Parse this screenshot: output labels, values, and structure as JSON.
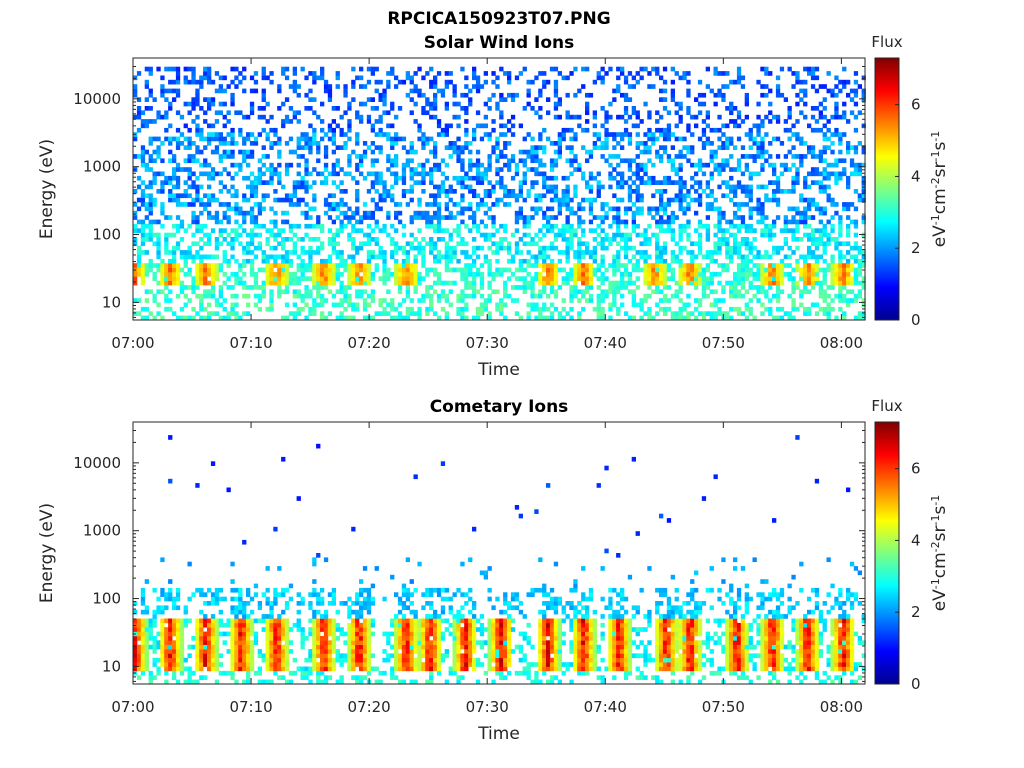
{
  "figure": {
    "title": "RPCICA150923T07.PNG"
  },
  "chart_data": [
    {
      "type": "heatmap",
      "title": "Solar Wind Ions",
      "xlabel": "Time",
      "ylabel": "Energy (eV)",
      "x_range": [
        "07:00",
        "08:02"
      ],
      "x_ticks": [
        "07:00",
        "07:10",
        "07:20",
        "07:30",
        "07:40",
        "07:50",
        "08:00"
      ],
      "y_scale": "log",
      "y_range": [
        5.5,
        40000
      ],
      "y_ticks": [
        10,
        100,
        1000,
        10000
      ],
      "colorbar": {
        "title": "Flux",
        "label": "eV^-1 cm^-2 sr^-1 s^-1",
        "range": [
          0,
          7.3
        ],
        "ticks": [
          0,
          2,
          4,
          6
        ],
        "colormap": "jet"
      },
      "description_values": {
        "scattered_high_energy_flux_range": [
          1,
          3
        ],
        "bright_band_energy_ev": [
          18,
          35
        ],
        "bright_band_peak_flux": 6,
        "bright_band_times": [
          "07:00",
          "07:03",
          "07:06",
          "07:12",
          "07:16",
          "07:19",
          "07:23",
          "07:35",
          "07:38",
          "07:44",
          "07:47",
          "07:54",
          "07:57",
          "08:00"
        ]
      }
    },
    {
      "type": "heatmap",
      "title": "Cometary Ions",
      "xlabel": "Time",
      "ylabel": "Energy (eV)",
      "x_range": [
        "07:00",
        "08:02"
      ],
      "x_ticks": [
        "07:00",
        "07:10",
        "07:20",
        "07:30",
        "07:40",
        "07:50",
        "08:00"
      ],
      "y_scale": "log",
      "y_range": [
        5.5,
        40000
      ],
      "y_ticks": [
        10,
        100,
        1000,
        10000
      ],
      "colorbar": {
        "title": "Flux",
        "label": "eV^-1 cm^-2 sr^-1 s^-1",
        "range": [
          0,
          7.3
        ],
        "ticks": [
          0,
          2,
          4,
          6
        ],
        "colormap": "jet"
      },
      "description_values": {
        "burst_energy_ev": [
          8,
          45
        ],
        "burst_peak_flux": 7,
        "burst_times": [
          "07:00",
          "07:03",
          "07:06",
          "07:09",
          "07:12",
          "07:16",
          "07:19",
          "07:23",
          "07:25",
          "07:28",
          "07:31",
          "07:35",
          "07:38",
          "07:41",
          "07:45",
          "07:47",
          "07:51",
          "07:54",
          "07:57",
          "08:00"
        ],
        "sparse_points_energy_range_ev": [
          400,
          25000
        ]
      }
    }
  ]
}
